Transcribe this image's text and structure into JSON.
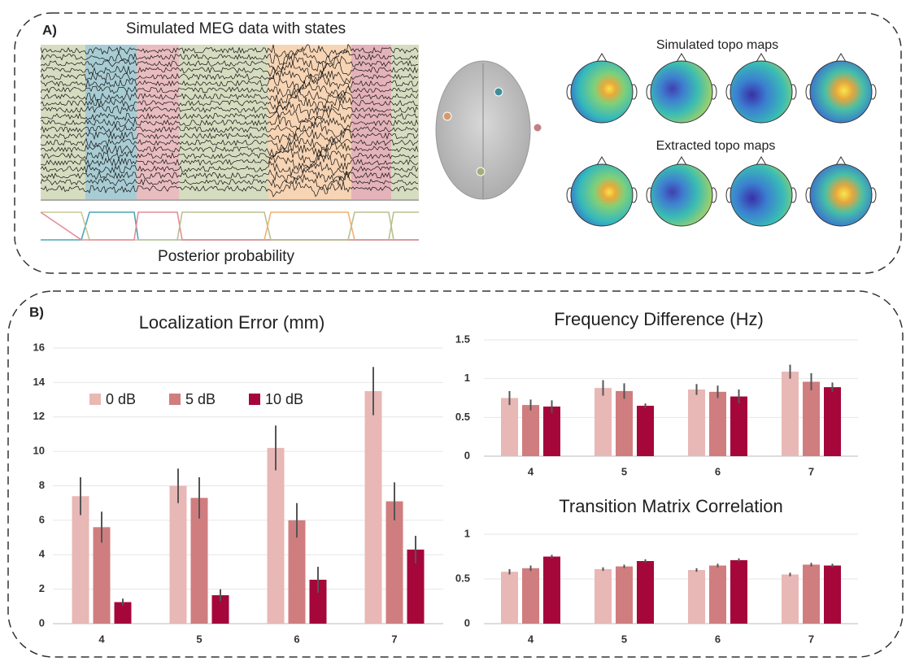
{
  "panel_a": {
    "label": "A)",
    "meg_title": "Simulated MEG data with states",
    "posterior_label": "Posterior probability",
    "simulated_title": "Simulated topo maps",
    "extracted_title": "Extracted topo maps"
  },
  "panel_b_label": "B)",
  "chart_data": [
    {
      "type": "bar",
      "title": "Localization Error (mm)",
      "categories": [
        "4",
        "5",
        "6",
        "7"
      ],
      "series": [
        {
          "name": "0 dB",
          "color": "#e8b8b6",
          "values": [
            7.4,
            8.0,
            10.2,
            13.5
          ],
          "errors": [
            1.1,
            1.0,
            1.3,
            1.4
          ]
        },
        {
          "name": "5 dB",
          "color": "#d07d7f",
          "values": [
            5.6,
            7.3,
            6.0,
            7.1
          ],
          "errors": [
            0.9,
            1.2,
            1.0,
            1.1
          ]
        },
        {
          "name": "10 dB",
          "color": "#a5073b",
          "values": [
            1.25,
            1.65,
            2.55,
            4.3
          ],
          "errors": [
            0.2,
            0.35,
            0.75,
            0.8
          ]
        }
      ],
      "ylim": [
        0,
        16
      ],
      "yticks": [
        0,
        2,
        4,
        6,
        8,
        10,
        12,
        14,
        16
      ],
      "grid": true
    },
    {
      "type": "bar",
      "title": "Frequency Difference (Hz)",
      "categories": [
        "4",
        "5",
        "6",
        "7"
      ],
      "series": [
        {
          "color": "#e8b8b6",
          "values": [
            0.75,
            0.88,
            0.86,
            1.09
          ],
          "errors": [
            0.09,
            0.1,
            0.07,
            0.09
          ]
        },
        {
          "color": "#d07d7f",
          "values": [
            0.66,
            0.84,
            0.83,
            0.96
          ],
          "errors": [
            0.07,
            0.1,
            0.08,
            0.11
          ]
        },
        {
          "color": "#a5073b",
          "values": [
            0.64,
            0.65,
            0.77,
            0.89
          ],
          "errors": [
            0.08,
            0.03,
            0.09,
            0.06
          ]
        }
      ],
      "ylim": [
        0,
        1.5
      ],
      "yticks": [
        0,
        0.5,
        1,
        1.5
      ],
      "grid": true
    },
    {
      "type": "bar",
      "title": "Transition Matrix Correlation",
      "categories": [
        "4",
        "5",
        "6",
        "7"
      ],
      "series": [
        {
          "color": "#e8b8b6",
          "values": [
            0.58,
            0.61,
            0.6,
            0.55
          ],
          "errors": [
            0.03,
            0.02,
            0.02,
            0.02
          ]
        },
        {
          "color": "#d07d7f",
          "values": [
            0.62,
            0.64,
            0.65,
            0.66
          ],
          "errors": [
            0.03,
            0.02,
            0.02,
            0.02
          ]
        },
        {
          "color": "#a5073b",
          "values": [
            0.75,
            0.7,
            0.71,
            0.65
          ],
          "errors": [
            0.02,
            0.02,
            0.02,
            0.02
          ]
        }
      ],
      "ylim": [
        0,
        1
      ],
      "yticks": [
        0,
        0.5,
        1
      ],
      "grid": true
    }
  ]
}
